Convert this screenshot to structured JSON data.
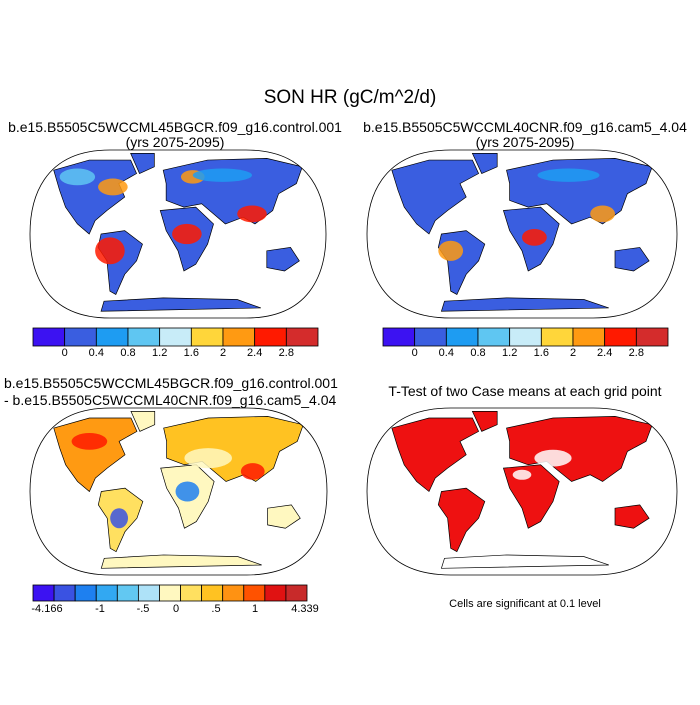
{
  "title": "SON HR (gC/m^2/d)",
  "panels": [
    {
      "title_lines": [
        "b.e15.B5505C5WCCML45BGCR.f09_g16.control.001",
        "(yrs 2075-2095)"
      ]
    },
    {
      "title_lines": [
        "b.e15.B5505C5WCCML40CNR.f09_g16.cam5_4.04",
        "(yrs 2075-2095)"
      ]
    },
    {
      "title_lines": [
        "b.e15.B5505C5WCCML45BGCR.f09_g16.control.001",
        "- b.e15.B5505C5WCCML40CNR.f09_g16.cam5_4.04"
      ]
    },
    {
      "title_lines": [
        "T-Test of two Case means at each grid point"
      ],
      "note": "Cells are significant at 0.1 level"
    }
  ],
  "colorbars": [
    {
      "colors": [
        "#3c12f2",
        "#3a5ee0",
        "#1e9cf2",
        "#5fc6f2",
        "#c8ecf8",
        "#ffd63a",
        "#ff9a12",
        "#ff1a00",
        "#d42c2c"
      ],
      "labels": [
        "0",
        "0.4",
        "0.8",
        "1.2",
        "1.6",
        "2",
        "2.4",
        "2.8"
      ]
    },
    {
      "colors": [
        "#3c12f2",
        "#3a5ee0",
        "#1e9cf2",
        "#5fc6f2",
        "#c8ecf8",
        "#ffd63a",
        "#ff9a12",
        "#ff1a00",
        "#d42c2c"
      ],
      "labels": [
        "0",
        "0.4",
        "0.8",
        "1.2",
        "1.6",
        "2",
        "2.4",
        "2.8"
      ]
    },
    {
      "colors": [
        "#3c12f2",
        "#3a52e2",
        "#1e80f0",
        "#32a8f2",
        "#62c8f2",
        "#aee2f8",
        "#fff8c0",
        "#ffe060",
        "#ffc222",
        "#ff9212",
        "#ff5200",
        "#e01212",
        "#c82a2a"
      ],
      "labels": [
        "-4.166",
        "-1",
        "-.5",
        "0",
        ".5",
        "1",
        "4.339"
      ]
    }
  ]
}
